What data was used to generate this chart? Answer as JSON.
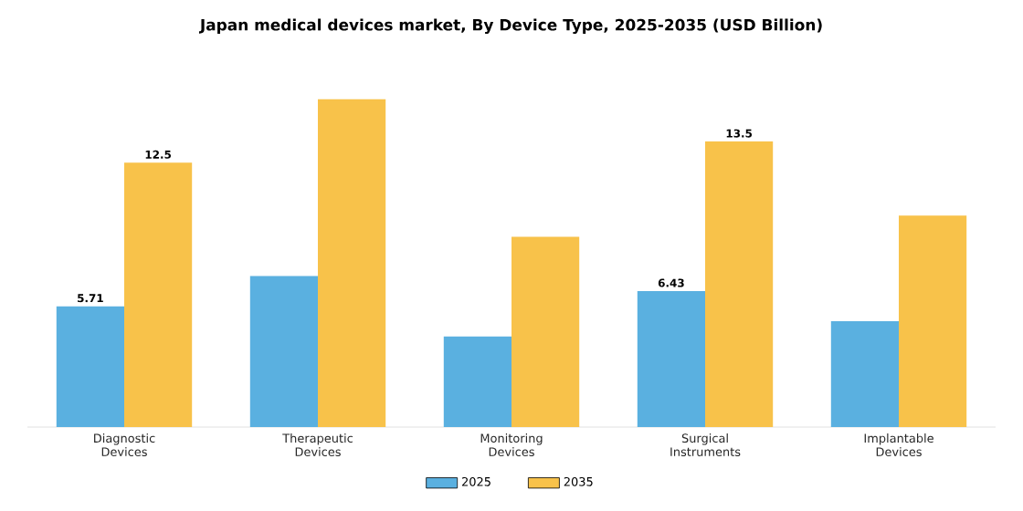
{
  "chart_data": {
    "type": "bar",
    "title": "Japan medical devices market, By Device Type, 2025-2035 (USD Billion)",
    "categories": [
      "Diagnostic Devices",
      "Therapeutic Devices",
      "Monitoring Devices",
      "Surgical Instruments",
      "Implantable Devices"
    ],
    "series": [
      {
        "name": "2025",
        "color": "#5ab0e0",
        "values": [
          5.71,
          7.14,
          4.28,
          6.43,
          5.0
        ],
        "value_labels": [
          "5.71",
          null,
          null,
          "6.43",
          null
        ]
      },
      {
        "name": "2035",
        "color": "#f8c24a",
        "values": [
          12.5,
          15.5,
          9.0,
          13.5,
          10.0
        ],
        "value_labels": [
          "12.5",
          null,
          null,
          "13.5",
          null
        ]
      }
    ],
    "tick_labels": "x",
    "legend": "bottom"
  }
}
